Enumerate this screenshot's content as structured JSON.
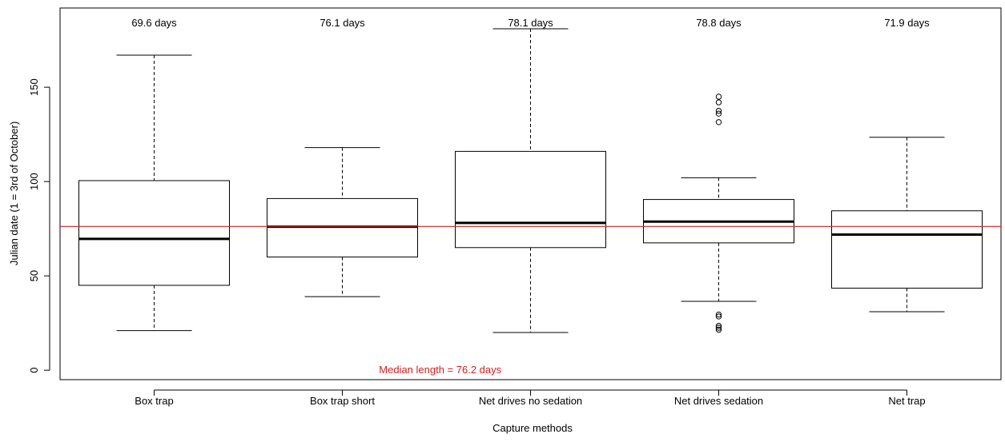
{
  "chart_data": {
    "type": "boxplot",
    "xlabel": "Capture methods",
    "ylabel": "Julian date (1 = 3rd of October)",
    "ylim": [
      -5,
      192
    ],
    "yticks": [
      0,
      50,
      100,
      150
    ],
    "grid": false,
    "categories": [
      "Box trap",
      "Box trap short",
      "Net drives no sedation",
      "Net drives sedation",
      "Net trap"
    ],
    "boxes": [
      {
        "whisker_low": 21,
        "q1": 45,
        "median": 69.6,
        "q3": 100.5,
        "whisker_high": 167,
        "outliers": []
      },
      {
        "whisker_low": 39,
        "q1": 60,
        "median": 76.1,
        "q3": 91,
        "whisker_high": 118,
        "outliers": []
      },
      {
        "whisker_low": 20,
        "q1": 65,
        "median": 78.1,
        "q3": 116,
        "whisker_high": 181,
        "outliers": []
      },
      {
        "whisker_low": 36.5,
        "q1": 67.5,
        "median": 78.8,
        "q3": 90.5,
        "whisker_high": 102,
        "outliers": [
          131.5,
          136,
          137.5,
          142,
          145,
          21.5,
          22.5,
          23.5,
          28.5,
          29.5
        ]
      },
      {
        "whisker_low": 31,
        "q1": 43.5,
        "median": 71.9,
        "q3": 84.5,
        "whisker_high": 123.5,
        "outliers": []
      }
    ],
    "top_labels": [
      "69.6 days",
      "76.1 days",
      "78.1 days",
      "78.8 days",
      "71.9 days"
    ],
    "reference_line": {
      "value": 76.2,
      "label": "Median length = 76.2 days",
      "color": "#cc2222"
    },
    "colors": {
      "box": "#000000",
      "reference": "#cc2222"
    }
  }
}
